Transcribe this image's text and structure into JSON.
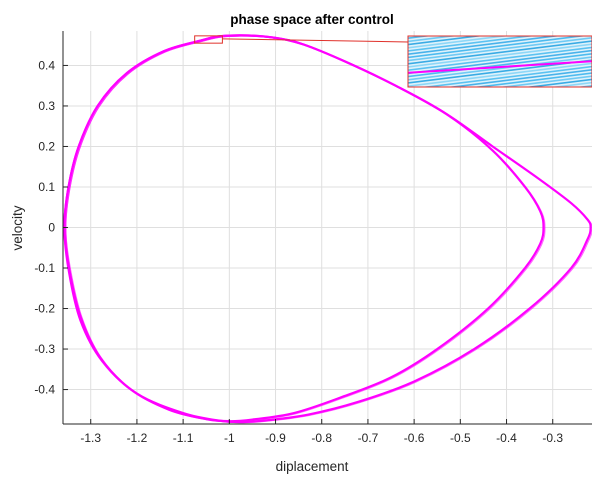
{
  "chart_data": {
    "type": "line",
    "title": "phase space after control",
    "xlabel": "diplacement",
    "ylabel": "velocity",
    "xlim": [
      -1.36,
      -0.215
    ],
    "ylim": [
      -0.485,
      0.485
    ],
    "xticks": [
      -1.3,
      -1.2,
      -1.1,
      -1.0,
      -0.9,
      -0.8,
      -0.7,
      -0.6,
      -0.5,
      -0.4,
      -0.3
    ],
    "xtick_labels": [
      "-1.3",
      "-1.2",
      "-1.1",
      "-1",
      "-0.9",
      "-0.8",
      "-0.7",
      "-0.6",
      "-0.5",
      "-0.4",
      "-0.3"
    ],
    "yticks": [
      -0.4,
      -0.3,
      -0.2,
      -0.1,
      0,
      0.1,
      0.2,
      0.3,
      0.4
    ],
    "ytick_labels": [
      "-0.4",
      "-0.3",
      "-0.2",
      "-0.1",
      "0",
      "0.1",
      "0.2",
      "0.3",
      "0.4"
    ],
    "grid": true,
    "line_color": "#ff00ff",
    "zoom_box": {
      "x": [
        -1.075,
        -1.015
      ],
      "y": [
        0.455,
        0.473
      ],
      "color": "#e0302a"
    },
    "series": [
      {
        "x": [
          -1.357,
          -1.348,
          -1.326,
          -1.285,
          -1.223,
          -1.142,
          -1.06,
          -1.02,
          -0.96,
          -0.9,
          -0.84,
          -0.75,
          -0.64,
          -0.53,
          -0.43,
          -0.36,
          -0.327,
          -0.32,
          -0.327,
          -0.36,
          -0.44,
          -0.55,
          -0.65,
          -0.76,
          -0.86,
          -0.95,
          -1.0,
          -1.05,
          -1.13,
          -1.213,
          -1.28,
          -1.322,
          -1.347,
          -1.357
        ],
        "y": [
          0.0,
          0.1,
          0.2,
          0.3,
          0.38,
          0.435,
          0.462,
          0.472,
          0.474,
          0.468,
          0.452,
          0.41,
          0.35,
          0.28,
          0.19,
          0.1,
          0.04,
          0.0,
          -0.04,
          -0.1,
          -0.2,
          -0.3,
          -0.37,
          -0.42,
          -0.458,
          -0.474,
          -0.478,
          -0.473,
          -0.45,
          -0.4,
          -0.32,
          -0.22,
          -0.1,
          0.0
        ]
      },
      {
        "x": [
          -1.357,
          -1.348,
          -1.326,
          -1.285,
          -1.223,
          -1.142,
          -1.06,
          -1.02,
          -0.96,
          -0.9,
          -0.84,
          -0.75,
          -0.64,
          -0.53,
          -0.43,
          -0.33,
          -0.26,
          -0.225,
          -0.218,
          -0.225,
          -0.26,
          -0.35,
          -0.47,
          -0.6,
          -0.72,
          -0.83,
          -0.92,
          -0.97,
          -1.02,
          -1.1,
          -1.2,
          -1.275,
          -1.322,
          -1.347,
          -1.357
        ],
        "y": [
          0.0,
          0.1,
          0.2,
          0.3,
          0.38,
          0.435,
          0.462,
          0.472,
          0.474,
          0.468,
          0.452,
          0.41,
          0.35,
          0.28,
          0.2,
          0.12,
          0.06,
          0.02,
          0.0,
          -0.03,
          -0.1,
          -0.2,
          -0.3,
          -0.38,
          -0.43,
          -0.462,
          -0.476,
          -0.48,
          -0.477,
          -0.458,
          -0.41,
          -0.33,
          -0.23,
          -0.11,
          0.0
        ]
      }
    ]
  }
}
